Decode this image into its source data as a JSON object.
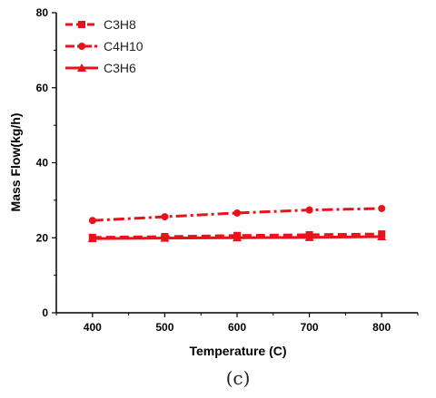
{
  "chart_data": {
    "type": "line",
    "xlabel": "Temperature (C)",
    "ylabel": "Mass Flow(kg/h)",
    "caption": "(c)",
    "xlim": [
      350,
      850
    ],
    "ylim": [
      0,
      80
    ],
    "xticks": [
      400,
      500,
      600,
      700,
      800
    ],
    "yticks": [
      0,
      20,
      40,
      60,
      80
    ],
    "x": [
      400,
      500,
      600,
      700,
      800
    ],
    "grid": false,
    "legend_position": "top-left",
    "series": [
      {
        "name": "C3H8",
        "values": [
          20.1,
          20.3,
          20.6,
          20.8,
          21.0
        ],
        "color": "#e8121a",
        "marker": "square",
        "line_style": "dashed"
      },
      {
        "name": "C4H10",
        "values": [
          24.6,
          25.6,
          26.6,
          27.4,
          27.8
        ],
        "color": "#e8121a",
        "marker": "circle",
        "line_style": "dash-dot"
      },
      {
        "name": "C3H6",
        "values": [
          19.8,
          19.9,
          20.0,
          20.1,
          20.3
        ],
        "color": "#e8121a",
        "marker": "triangle",
        "line_style": "solid"
      }
    ]
  }
}
